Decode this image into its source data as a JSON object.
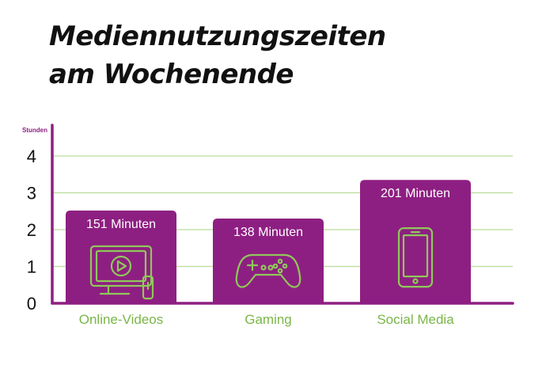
{
  "title": {
    "line1": "Mediennutzungszeiten",
    "line2": "am Wochenende"
  },
  "colors": {
    "bar": "#8e1f82",
    "axis": "#8e1f82",
    "grid": "#b9dc9a",
    "category_label": "#7ab648",
    "icon": "#8fc85a",
    "bar_label": "#ffffff"
  },
  "chart_data": {
    "type": "bar",
    "title": "Mediennutzungszeiten am Wochenende",
    "ylabel": "Stunden",
    "xlabel": "",
    "categories": [
      "Online-Videos",
      "Gaming",
      "Social Media"
    ],
    "values": [
      2.52,
      2.3,
      3.35
    ],
    "data_labels": [
      "151 Minuten",
      "138 Minuten",
      "201 Minuten"
    ],
    "icons": [
      "tv-play-icon",
      "gamepad-icon",
      "smartphone-icon"
    ],
    "yticks": [
      0,
      1,
      2,
      3,
      4
    ],
    "ylim": [
      0,
      4.6
    ],
    "grid": true
  }
}
